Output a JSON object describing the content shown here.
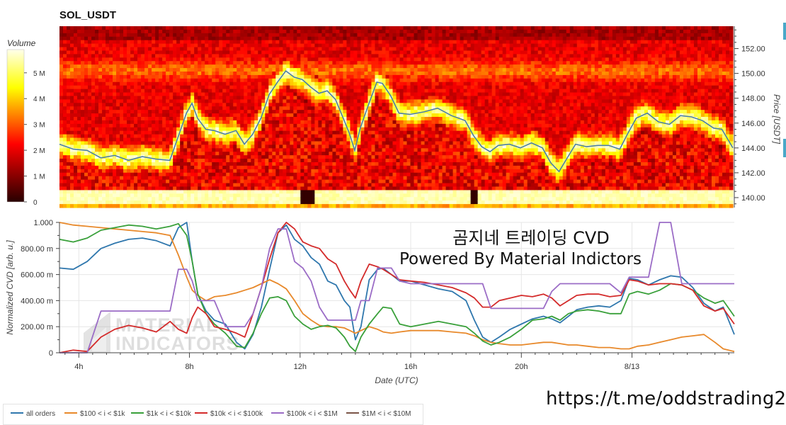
{
  "title": "SOL_USDT",
  "url_text": "https://t.me/oddstrading2",
  "colorbar": {
    "label": "Volume",
    "ticks": [
      "5 M",
      "4 M",
      "3 M",
      "2 M",
      "1 M",
      "0"
    ],
    "tick_values": [
      5,
      4,
      3,
      2,
      1,
      0
    ]
  },
  "overlay": {
    "line1": "곰지네 트레이딩 CVD",
    "line2": "Powered By Material Indictors"
  },
  "watermark": {
    "line1": "MATERIAL",
    "line2": "INDICATORS"
  },
  "colors": {
    "all_orders": "#2f77ad",
    "s100_1k": "#e8892b",
    "s1k_10k": "#39a03a",
    "s10k_100k": "#d42b2b",
    "s100k_1m": "#9b6cc6",
    "s1m_10m": "#7b5548",
    "price_line": "#4a7ea8"
  },
  "chart_data": [
    {
      "type": "heatmap",
      "title": "SOL_USDT",
      "ylabel": "Price [USDT]",
      "ylim": [
        139.2,
        153.8
      ],
      "y_ticks": [
        140.0,
        142.0,
        144.0,
        146.0,
        148.0,
        150.0,
        152.0
      ],
      "y_tick_labels": [
        "140.00",
        "142.00",
        "144.00",
        "146.00",
        "148.00",
        "150.00",
        "152.00"
      ],
      "xlim_hours": [
        3.3,
        27.7
      ],
      "price_series": {
        "name": "Price",
        "x_hours": [
          3.3,
          3.8,
          4.3,
          4.8,
          5.3,
          5.8,
          6.3,
          6.8,
          7.3,
          7.6,
          7.9,
          8.1,
          8.3,
          8.6,
          8.9,
          9.3,
          9.7,
          10.0,
          10.3,
          10.6,
          10.9,
          11.2,
          11.5,
          11.8,
          12.1,
          12.4,
          12.7,
          13.0,
          13.3,
          13.6,
          13.8,
          14.0,
          14.2,
          14.5,
          14.8,
          15.0,
          15.3,
          15.6,
          16.0,
          16.5,
          17.0,
          17.5,
          18.0,
          18.3,
          18.6,
          18.9,
          19.2,
          19.6,
          20.0,
          20.4,
          20.8,
          21.1,
          21.4,
          21.7,
          22.0,
          22.4,
          22.8,
          23.2,
          23.6,
          23.9,
          24.2,
          24.6,
          25.0,
          25.4,
          25.8,
          26.2,
          26.6,
          27.0,
          27.3,
          27.7
        ],
        "price": [
          144.3,
          143.9,
          143.8,
          143.2,
          143.4,
          143.0,
          143.3,
          143.1,
          143.0,
          144.9,
          146.8,
          147.6,
          146.4,
          145.5,
          145.4,
          145.1,
          145.4,
          144.3,
          145.1,
          146.4,
          148.3,
          149.3,
          150.2,
          149.7,
          149.5,
          148.9,
          148.4,
          148.6,
          147.9,
          146.3,
          145.2,
          143.8,
          145.6,
          147.5,
          149.3,
          149.2,
          148.2,
          146.8,
          146.7,
          146.9,
          147.2,
          146.6,
          146.2,
          145.0,
          144.1,
          143.7,
          144.2,
          144.3,
          144.0,
          144.4,
          144.0,
          142.8,
          142.1,
          143.2,
          144.3,
          144.1,
          144.2,
          144.2,
          143.9,
          145.2,
          146.4,
          146.8,
          146.1,
          145.9,
          146.6,
          146.5,
          146.2,
          145.6,
          145.5,
          144.0
        ]
      }
    },
    {
      "type": "line",
      "xlabel": "Date (UTC)",
      "ylabel": "Normalized CVD [arb. u.]",
      "ylim": [
        0,
        1.0
      ],
      "y_ticks": [
        0,
        0.2,
        0.4,
        0.6,
        0.8,
        1.0
      ],
      "y_tick_labels": [
        "0",
        "200.00 m",
        "400.00 m",
        "600.00 m",
        "800.00 m",
        "1.000"
      ],
      "xlim_hours": [
        3.3,
        27.7
      ],
      "x_ticks_hours": [
        4,
        8,
        12,
        16,
        20,
        24
      ],
      "x_tick_labels": [
        "4h",
        "8h",
        "12h",
        "16h",
        "20h",
        "8/13"
      ],
      "x_hours": [
        3.3,
        3.8,
        4.3,
        4.8,
        5.3,
        5.8,
        6.3,
        6.8,
        7.3,
        7.6,
        7.9,
        8.1,
        8.3,
        8.6,
        8.9,
        9.3,
        9.7,
        10.0,
        10.3,
        10.6,
        10.9,
        11.2,
        11.5,
        11.8,
        12.1,
        12.4,
        12.7,
        13.0,
        13.3,
        13.6,
        13.8,
        14.0,
        14.2,
        14.5,
        14.8,
        15.0,
        15.3,
        15.6,
        16.0,
        16.5,
        17.0,
        17.5,
        18.0,
        18.3,
        18.6,
        18.9,
        19.2,
        19.6,
        20.0,
        20.4,
        20.8,
        21.1,
        21.4,
        21.7,
        22.0,
        22.4,
        22.8,
        23.2,
        23.6,
        23.9,
        24.2,
        24.6,
        25.0,
        25.4,
        25.8,
        26.2,
        26.6,
        27.0,
        27.3,
        27.7
      ],
      "series": [
        {
          "name": "all orders",
          "color_key": "all_orders",
          "values": [
            0.65,
            0.64,
            0.7,
            0.8,
            0.84,
            0.87,
            0.88,
            0.86,
            0.82,
            0.96,
            1.0,
            0.7,
            0.45,
            0.32,
            0.25,
            0.22,
            0.08,
            0.03,
            0.14,
            0.35,
            0.64,
            0.92,
            0.98,
            0.87,
            0.82,
            0.73,
            0.68,
            0.55,
            0.52,
            0.4,
            0.35,
            0.1,
            0.2,
            0.56,
            0.64,
            0.65,
            0.6,
            0.55,
            0.55,
            0.52,
            0.49,
            0.47,
            0.4,
            0.25,
            0.12,
            0.08,
            0.12,
            0.18,
            0.22,
            0.26,
            0.28,
            0.26,
            0.23,
            0.28,
            0.33,
            0.35,
            0.36,
            0.35,
            0.4,
            0.57,
            0.56,
            0.52,
            0.56,
            0.59,
            0.58,
            0.5,
            0.38,
            0.32,
            0.35,
            0.14
          ]
        },
        {
          "name": "$100 < i < $1k",
          "color_key": "s100_1k",
          "values": [
            1.0,
            0.98,
            0.97,
            0.96,
            0.95,
            0.94,
            0.93,
            0.92,
            0.9,
            0.75,
            0.58,
            0.48,
            0.44,
            0.4,
            0.43,
            0.44,
            0.46,
            0.48,
            0.5,
            0.53,
            0.56,
            0.53,
            0.49,
            0.4,
            0.3,
            0.25,
            0.21,
            0.2,
            0.2,
            0.19,
            0.17,
            0.15,
            0.17,
            0.2,
            0.18,
            0.16,
            0.15,
            0.16,
            0.17,
            0.17,
            0.17,
            0.16,
            0.15,
            0.13,
            0.1,
            0.08,
            0.07,
            0.06,
            0.06,
            0.07,
            0.08,
            0.08,
            0.07,
            0.06,
            0.06,
            0.05,
            0.04,
            0.04,
            0.03,
            0.03,
            0.05,
            0.06,
            0.08,
            0.1,
            0.12,
            0.13,
            0.14,
            0.08,
            0.03,
            0.01
          ]
        },
        {
          "name": "$1k < i < $10k",
          "color_key": "s1k_10k",
          "values": [
            0.87,
            0.85,
            0.88,
            0.94,
            0.96,
            0.98,
            0.97,
            0.95,
            0.97,
            0.99,
            0.9,
            0.7,
            0.45,
            0.3,
            0.22,
            0.15,
            0.05,
            0.04,
            0.15,
            0.3,
            0.42,
            0.43,
            0.4,
            0.28,
            0.22,
            0.18,
            0.2,
            0.21,
            0.19,
            0.12,
            0.05,
            0.01,
            0.12,
            0.22,
            0.3,
            0.35,
            0.34,
            0.22,
            0.2,
            0.22,
            0.24,
            0.22,
            0.2,
            0.15,
            0.09,
            0.06,
            0.08,
            0.12,
            0.18,
            0.25,
            0.26,
            0.28,
            0.25,
            0.3,
            0.32,
            0.33,
            0.32,
            0.3,
            0.3,
            0.45,
            0.47,
            0.45,
            0.48,
            0.53,
            0.52,
            0.48,
            0.42,
            0.38,
            0.4,
            0.28
          ]
        },
        {
          "name": "$10k < i < $100k",
          "color_key": "s10k_100k",
          "values": [
            0.0,
            0.02,
            0.01,
            0.12,
            0.18,
            0.21,
            0.19,
            0.16,
            0.24,
            0.18,
            0.15,
            0.27,
            0.35,
            0.3,
            0.2,
            0.18,
            0.15,
            0.12,
            0.3,
            0.5,
            0.72,
            0.92,
            1.0,
            0.95,
            0.85,
            0.82,
            0.8,
            0.72,
            0.68,
            0.55,
            0.48,
            0.42,
            0.55,
            0.68,
            0.66,
            0.64,
            0.6,
            0.56,
            0.55,
            0.54,
            0.52,
            0.5,
            0.46,
            0.42,
            0.35,
            0.35,
            0.4,
            0.42,
            0.44,
            0.43,
            0.45,
            0.42,
            0.36,
            0.4,
            0.44,
            0.45,
            0.45,
            0.43,
            0.44,
            0.56,
            0.55,
            0.52,
            0.53,
            0.53,
            0.52,
            0.48,
            0.36,
            0.32,
            0.34,
            0.22
          ]
        },
        {
          "name": "$100k < i < $1M",
          "color_key": "s100k_1m",
          "values": [
            0.0,
            0.0,
            0.0,
            0.32,
            0.32,
            0.32,
            0.32,
            0.32,
            0.32,
            0.64,
            0.64,
            0.55,
            0.4,
            0.4,
            0.4,
            0.2,
            0.2,
            0.2,
            0.3,
            0.5,
            0.8,
            0.95,
            0.95,
            0.7,
            0.65,
            0.55,
            0.35,
            0.25,
            0.25,
            0.25,
            0.25,
            0.25,
            0.4,
            0.4,
            0.65,
            0.65,
            0.65,
            0.55,
            0.53,
            0.53,
            0.53,
            0.53,
            0.53,
            0.53,
            0.53,
            0.34,
            0.34,
            0.34,
            0.34,
            0.34,
            0.34,
            0.47,
            0.53,
            0.53,
            0.53,
            0.53,
            0.53,
            0.53,
            0.46,
            0.58,
            0.58,
            0.58,
            1.0,
            1.0,
            0.53,
            0.53,
            0.53,
            0.53,
            0.53,
            0.53
          ]
        },
        {
          "name": "$1M < i < $10M",
          "color_key": "s1m_10m",
          "values": []
        }
      ]
    }
  ],
  "legend": [
    {
      "label": "all orders",
      "color_key": "all_orders"
    },
    {
      "label": "$100 < i < $1k",
      "color_key": "s100_1k"
    },
    {
      "label": "$1k < i < $10k",
      "color_key": "s1k_10k"
    },
    {
      "label": "$10k < i < $100k",
      "color_key": "s10k_100k"
    },
    {
      "label": "$100k < i < $1M",
      "color_key": "s100k_1m"
    },
    {
      "label": "$1M < i < $10M",
      "color_key": "s1m_10m"
    }
  ]
}
